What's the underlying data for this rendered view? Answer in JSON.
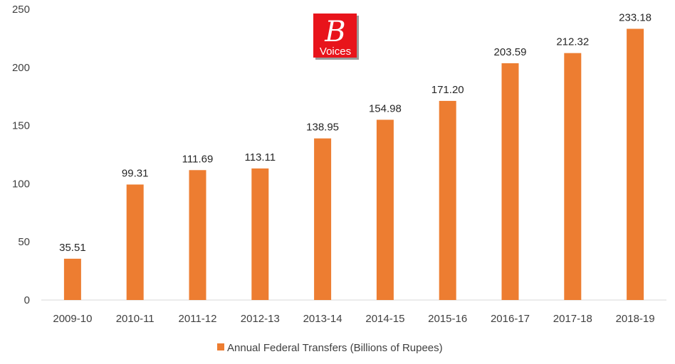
{
  "chart_data": {
    "type": "bar",
    "categories": [
      "2009-10",
      "2010-11",
      "2011-12",
      "2012-13",
      "2013-14",
      "2014-15",
      "2015-16",
      "2016-17",
      "2017-18",
      "2018-19"
    ],
    "series": [
      {
        "name": "Annual Federal Transfers (Billions of Rupees)",
        "values": [
          35.51,
          99.31,
          111.69,
          113.11,
          138.95,
          154.98,
          171.2,
          203.59,
          212.32,
          233.18
        ],
        "value_labels": [
          "35.51",
          "99.31",
          "111.69",
          "113.11",
          "138.95",
          "154.98",
          "171.20",
          "203.59",
          "212.32",
          "233.18"
        ],
        "color": "#ED7D31"
      }
    ],
    "yticks": [
      "0",
      "50",
      "100",
      "150",
      "200",
      "250"
    ],
    "ylim": [
      0,
      250
    ],
    "grid": false,
    "legend_position": "bottom",
    "title": "",
    "xlabel": "",
    "ylabel": ""
  },
  "logo": {
    "letter": "B",
    "word": "Voices",
    "color": "#E8141B"
  }
}
